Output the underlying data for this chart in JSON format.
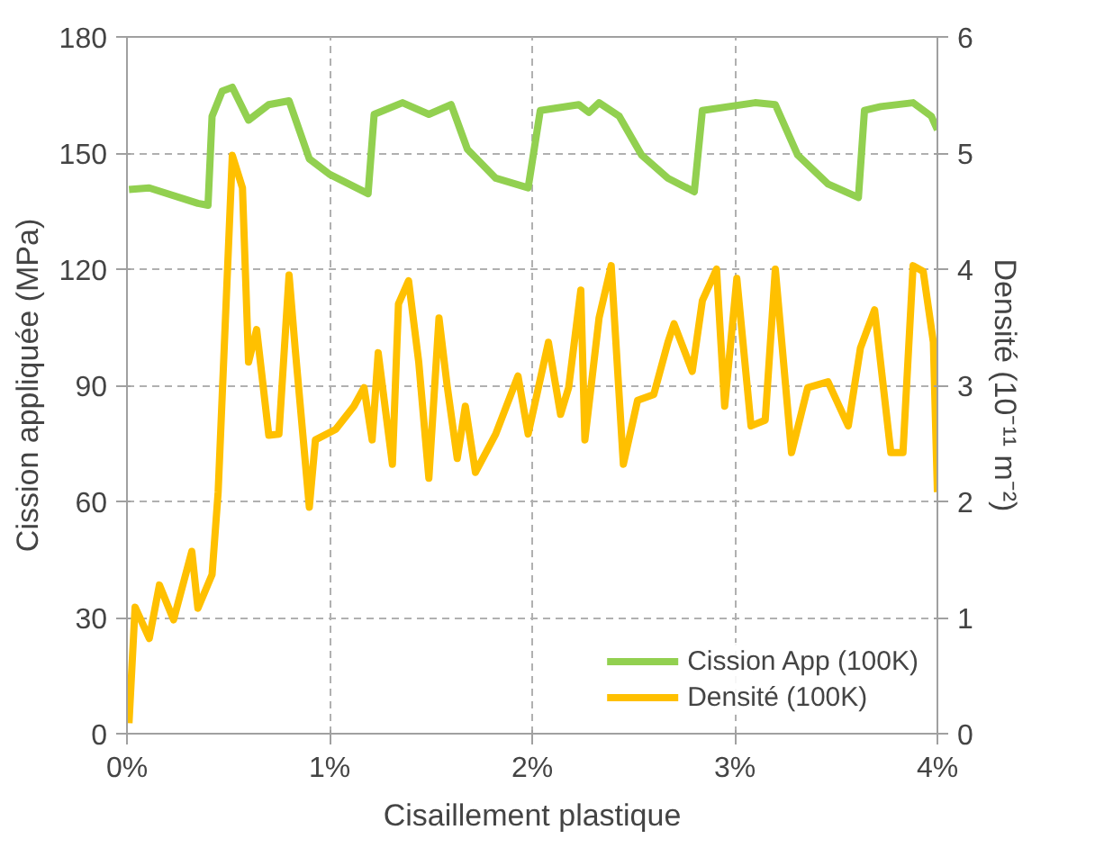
{
  "chart_data": {
    "type": "line",
    "xlabel": "Cisaillement plastique",
    "ylabel": "Cission appliquée (MPa)",
    "y2label": "Densité (10⁻¹¹ m⁻²)",
    "xlim": [
      0,
      4
    ],
    "xticks": [
      {
        "value": 0,
        "label": "0%"
      },
      {
        "value": 1,
        "label": "1%"
      },
      {
        "value": 2,
        "label": "2%"
      },
      {
        "value": 3,
        "label": "3%"
      },
      {
        "value": 4,
        "label": "4%"
      }
    ],
    "ylim": [
      0,
      180
    ],
    "yticks": [
      0,
      30,
      60,
      90,
      120,
      150,
      180
    ],
    "y2lim": [
      0,
      6
    ],
    "y2ticks": [
      0,
      1,
      2,
      3,
      4,
      5,
      6
    ],
    "grid": true,
    "legend": "bottom right",
    "line_style": "solid",
    "series": [
      {
        "name": "Cission App (100K)",
        "color": "#92d050",
        "x": [
          0.01,
          0.11,
          0.35,
          0.4,
          0.42,
          0.47,
          0.52,
          0.6,
          0.7,
          0.8,
          0.9,
          1.0,
          1.19,
          1.22,
          1.36,
          1.49,
          1.6,
          1.68,
          1.82,
          1.98,
          2.04,
          2.23,
          2.28,
          2.33,
          2.43,
          2.54,
          2.67,
          2.8,
          2.84,
          3.1,
          3.2,
          3.31,
          3.46,
          3.61,
          3.64,
          3.72,
          3.88,
          3.97,
          4.0
        ],
        "values": [
          140.6,
          141,
          137,
          136.5,
          159.5,
          166,
          167,
          158.5,
          162.5,
          163.5,
          148.5,
          144.5,
          139.5,
          160,
          163,
          160,
          162.5,
          151,
          143.5,
          141,
          161,
          162.5,
          160.5,
          163,
          159.5,
          149.5,
          143.5,
          140,
          161,
          163,
          162.5,
          149.5,
          142,
          138.5,
          161,
          162,
          163,
          159.5,
          156
        ]
      },
      {
        "name": "Densité (100K)",
        "color": "#ffc000",
        "axis": "y2",
        "x": [
          0.01,
          0.04,
          0.11,
          0.16,
          0.23,
          0.32,
          0.35,
          0.42,
          0.45,
          0.52,
          0.57,
          0.6,
          0.64,
          0.7,
          0.75,
          0.8,
          0.83,
          0.9,
          0.93,
          1.03,
          1.12,
          1.17,
          1.21,
          1.24,
          1.31,
          1.34,
          1.39,
          1.44,
          1.49,
          1.54,
          1.58,
          1.63,
          1.67,
          1.72,
          1.82,
          1.93,
          1.98,
          2.08,
          2.14,
          2.18,
          2.24,
          2.26,
          2.33,
          2.39,
          2.45,
          2.52,
          2.6,
          2.67,
          2.7,
          2.79,
          2.84,
          2.91,
          2.95,
          3.01,
          3.08,
          3.15,
          3.2,
          3.28,
          3.36,
          3.46,
          3.56,
          3.62,
          3.69,
          3.77,
          3.83,
          3.88,
          3.93,
          3.98,
          4.0
        ],
        "values": [
          0.09,
          1.09,
          0.82,
          1.28,
          0.98,
          1.57,
          1.08,
          1.37,
          2.08,
          4.98,
          4.7,
          3.2,
          3.48,
          2.57,
          2.58,
          3.95,
          3.32,
          1.95,
          2.53,
          2.62,
          2.82,
          2.98,
          2.53,
          3.28,
          2.32,
          3.7,
          3.9,
          3.2,
          2.2,
          3.58,
          3.0,
          2.37,
          2.82,
          2.25,
          2.58,
          3.08,
          2.58,
          3.37,
          2.75,
          2.98,
          3.82,
          2.53,
          3.58,
          4.03,
          2.32,
          2.87,
          2.92,
          3.37,
          3.53,
          3.12,
          3.73,
          4.0,
          2.82,
          3.92,
          2.65,
          2.7,
          4.0,
          2.42,
          2.98,
          3.03,
          2.65,
          3.32,
          3.65,
          2.42,
          2.42,
          4.03,
          3.98,
          3.37,
          2.08
        ]
      }
    ]
  }
}
